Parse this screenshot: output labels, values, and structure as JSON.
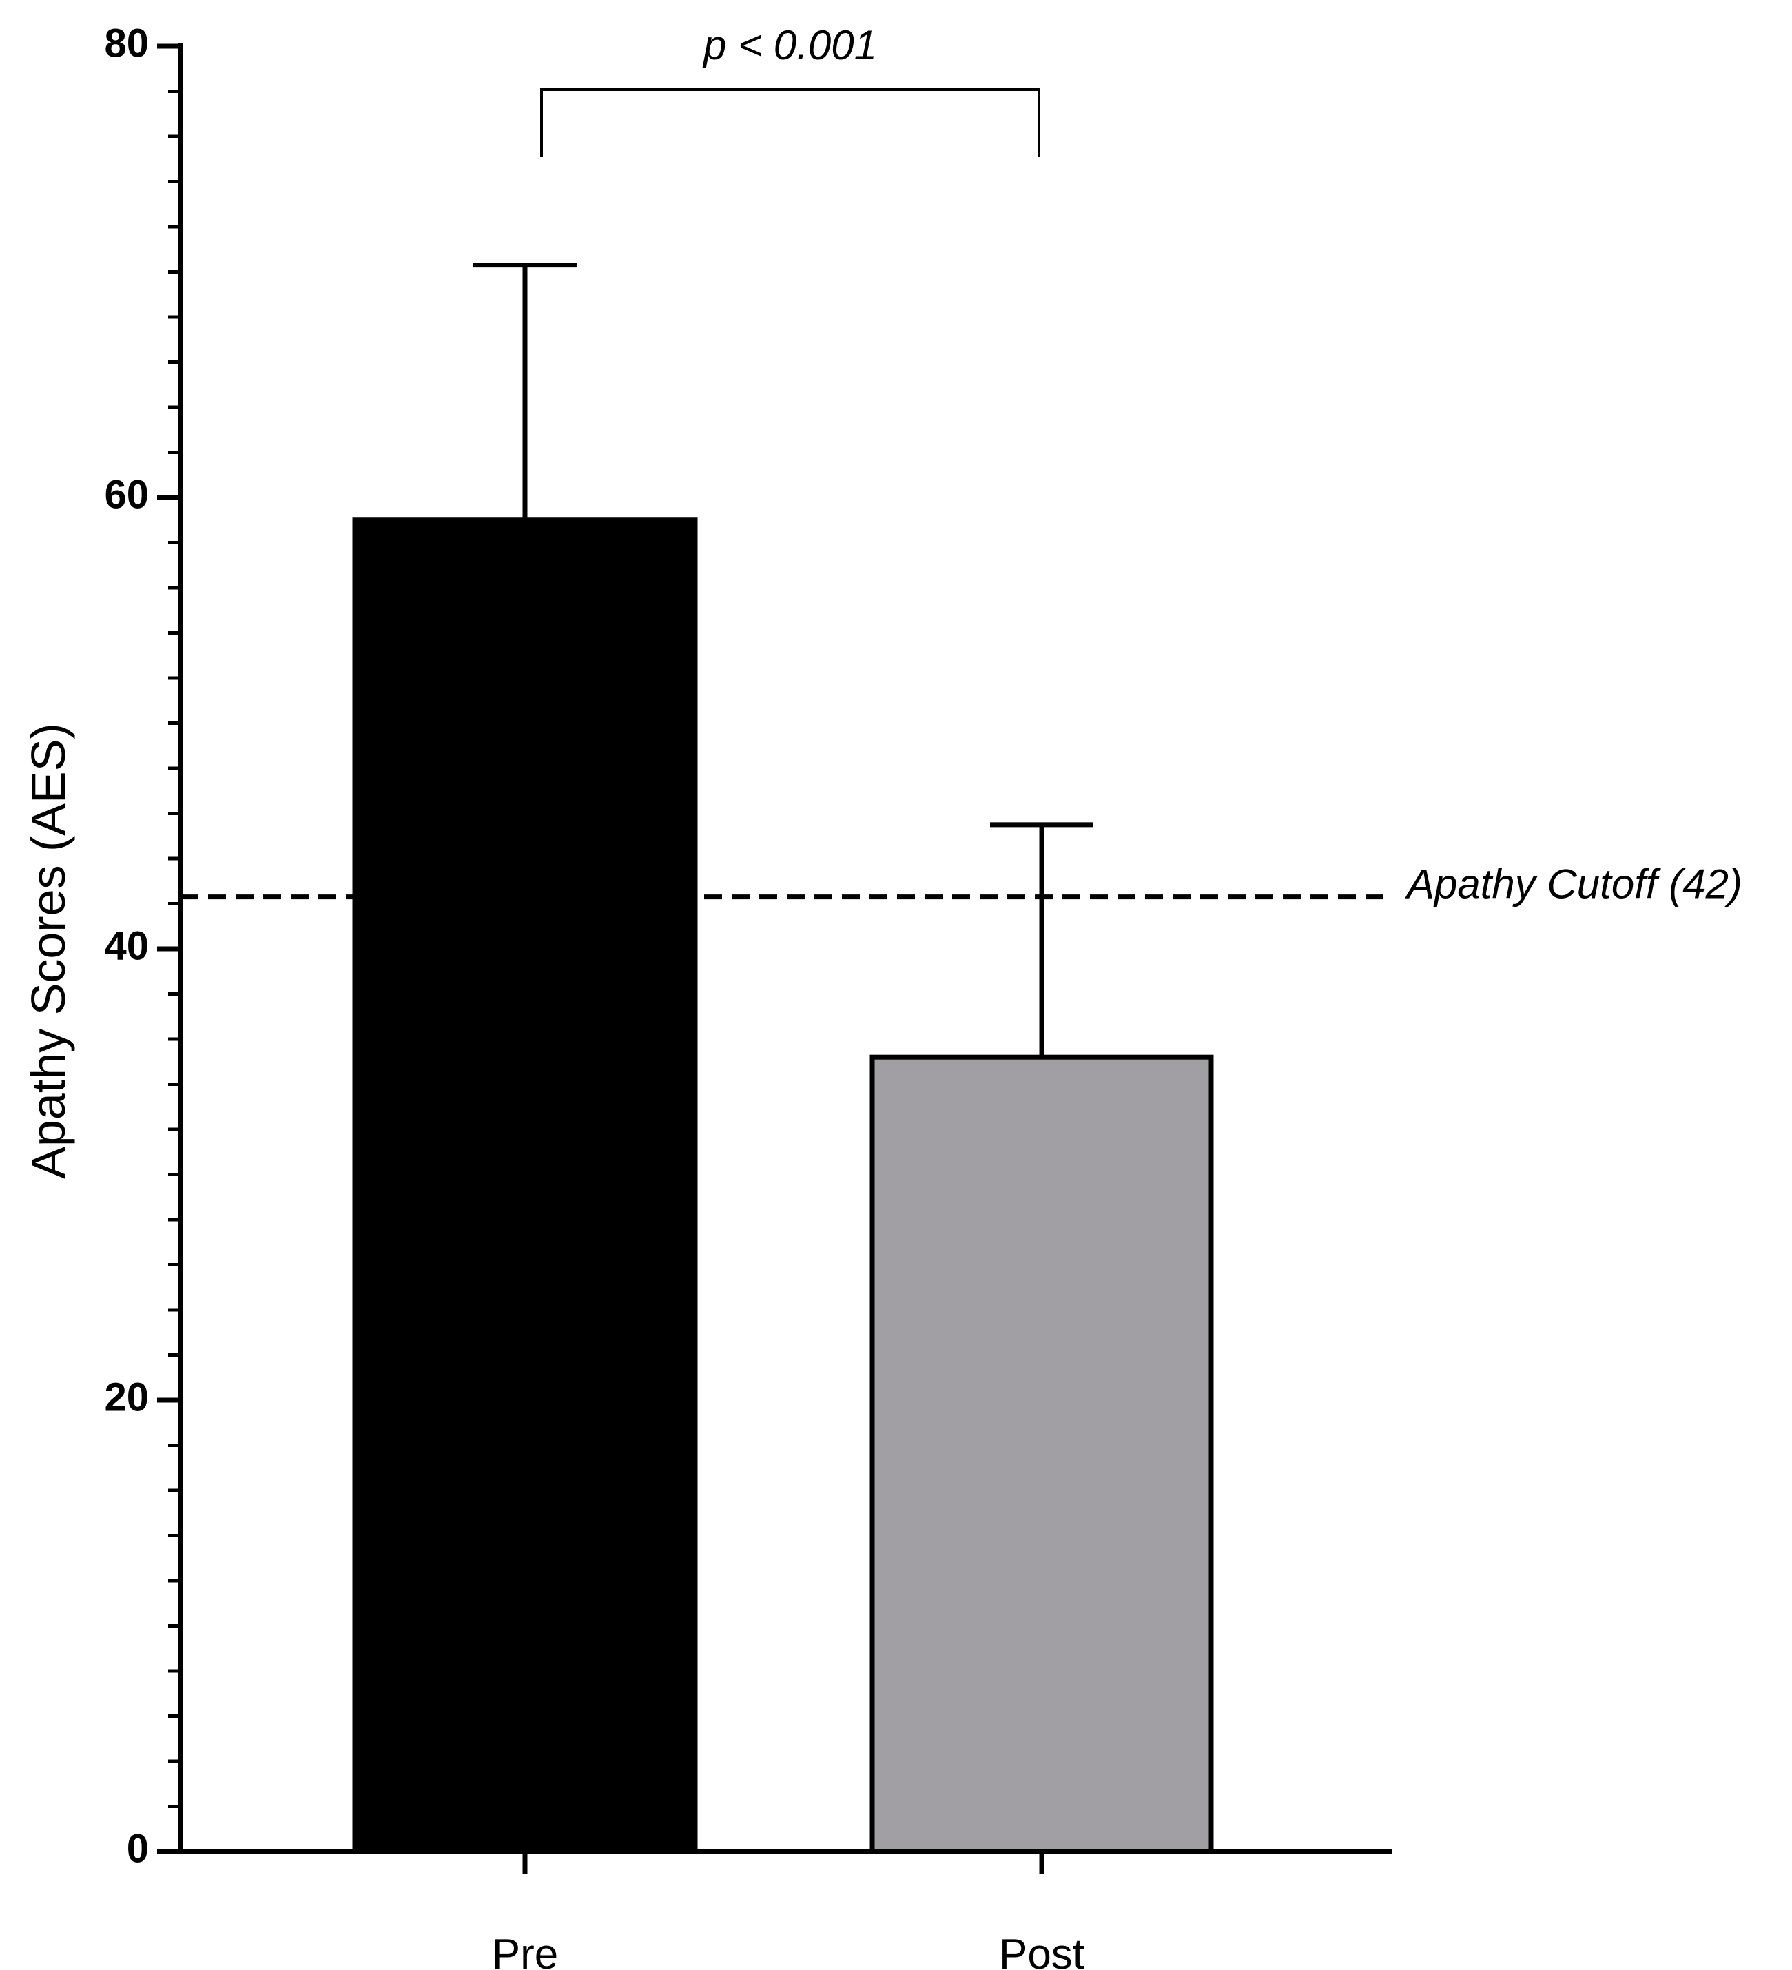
{
  "chart_data": {
    "type": "bar",
    "categories": [
      "Pre",
      "Post"
    ],
    "values": [
      59,
      35.2
    ],
    "error_upper": [
      70.3,
      45.5
    ],
    "colors": [
      "#000000",
      "#a19ea4"
    ],
    "xlabel": "",
    "ylabel": "Apathy Scores (AES)",
    "ylim": [
      0,
      80
    ],
    "yticks": [
      "0",
      "20",
      "40",
      "60",
      "80"
    ],
    "minor_tick_step": 2,
    "grid": false,
    "reference_line": {
      "value": 42.3,
      "label": "Apathy  Cutoff (42)",
      "style": "dashed"
    },
    "significance": {
      "between": [
        "Pre",
        "Post"
      ],
      "label": "p < 0.001"
    }
  }
}
